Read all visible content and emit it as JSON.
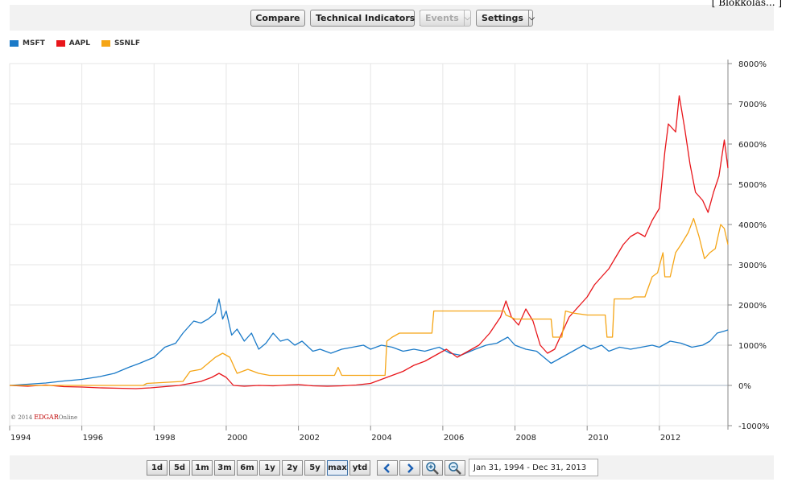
{
  "corner_text": "[ Blokkolás... ]",
  "toolbar": {
    "compare": "Compare",
    "technical_indicators": "Technical Indicators",
    "events": "Events",
    "settings": "Settings"
  },
  "legend": [
    {
      "name": "MSFT",
      "color": "#1a7ac8"
    },
    {
      "name": "AAPL",
      "color": "#e8161b"
    },
    {
      "name": "SSNLF",
      "color": "#f5a516"
    }
  ],
  "credit": {
    "prefix": "© 2014",
    "brand": "EDGAR",
    "suffix": "Online"
  },
  "range_buttons": [
    "1d",
    "5d",
    "1m",
    "3m",
    "6m",
    "1y",
    "2y",
    "5y",
    "max",
    "ytd"
  ],
  "active_range": "max",
  "date_range": "Jan 31, 1994 - Dec 31, 2013",
  "colors": {
    "grid": "#e6e6e6",
    "zero": "#a7b4c4",
    "axis": "#888888"
  },
  "chart_data": {
    "type": "line",
    "x_tick_labels": [
      "1994",
      "1996",
      "1998",
      "2000",
      "2002",
      "2004",
      "2006",
      "2008",
      "2010",
      "2012"
    ],
    "y_tick_labels": [
      "8000%",
      "7000%",
      "6000%",
      "5000%",
      "4000%",
      "3000%",
      "2000%",
      "1000%",
      "0%",
      "-1000%"
    ],
    "ylim": [
      -1000,
      8000
    ],
    "xlim": [
      1994.0,
      2013.9
    ],
    "grid": true,
    "legend_position": "top-left",
    "series": [
      {
        "name": "MSFT",
        "color": "#1a7ac8",
        "points": [
          [
            1994.0,
            0
          ],
          [
            1994.5,
            30
          ],
          [
            1995.0,
            60
          ],
          [
            1995.5,
            110
          ],
          [
            1996.0,
            150
          ],
          [
            1996.5,
            220
          ],
          [
            1996.9,
            300
          ],
          [
            1997.3,
            450
          ],
          [
            1997.6,
            550
          ],
          [
            1998.0,
            700
          ],
          [
            1998.3,
            950
          ],
          [
            1998.6,
            1050
          ],
          [
            1998.8,
            1300
          ],
          [
            1998.95,
            1450
          ],
          [
            1999.1,
            1600
          ],
          [
            1999.3,
            1550
          ],
          [
            1999.5,
            1650
          ],
          [
            1999.7,
            1800
          ],
          [
            1999.8,
            2150
          ],
          [
            1999.9,
            1650
          ],
          [
            2000.0,
            1850
          ],
          [
            2000.15,
            1250
          ],
          [
            2000.3,
            1400
          ],
          [
            2000.5,
            1100
          ],
          [
            2000.7,
            1300
          ],
          [
            2000.9,
            900
          ],
          [
            2001.1,
            1050
          ],
          [
            2001.3,
            1300
          ],
          [
            2001.5,
            1100
          ],
          [
            2001.7,
            1150
          ],
          [
            2001.9,
            1000
          ],
          [
            2002.1,
            1100
          ],
          [
            2002.4,
            850
          ],
          [
            2002.6,
            900
          ],
          [
            2002.9,
            800
          ],
          [
            2003.2,
            900
          ],
          [
            2003.5,
            950
          ],
          [
            2003.8,
            1000
          ],
          [
            2004.0,
            900
          ],
          [
            2004.3,
            1000
          ],
          [
            2004.6,
            950
          ],
          [
            2004.9,
            850
          ],
          [
            2005.2,
            900
          ],
          [
            2005.5,
            850
          ],
          [
            2005.9,
            950
          ],
          [
            2006.2,
            800
          ],
          [
            2006.5,
            750
          ],
          [
            2006.9,
            900
          ],
          [
            2007.2,
            1000
          ],
          [
            2007.5,
            1050
          ],
          [
            2007.8,
            1200
          ],
          [
            2008.0,
            1000
          ],
          [
            2008.3,
            900
          ],
          [
            2008.6,
            850
          ],
          [
            2008.8,
            700
          ],
          [
            2009.0,
            550
          ],
          [
            2009.3,
            700
          ],
          [
            2009.6,
            850
          ],
          [
            2009.9,
            1000
          ],
          [
            2010.1,
            900
          ],
          [
            2010.4,
            1000
          ],
          [
            2010.6,
            850
          ],
          [
            2010.9,
            950
          ],
          [
            2011.2,
            900
          ],
          [
            2011.5,
            950
          ],
          [
            2011.8,
            1000
          ],
          [
            2012.0,
            950
          ],
          [
            2012.3,
            1100
          ],
          [
            2012.6,
            1050
          ],
          [
            2012.9,
            950
          ],
          [
            2013.2,
            1000
          ],
          [
            2013.4,
            1100
          ],
          [
            2013.6,
            1300
          ],
          [
            2013.8,
            1350
          ],
          [
            2013.9,
            1380
          ]
        ]
      },
      {
        "name": "AAPL",
        "color": "#e8161b",
        "points": [
          [
            1994.0,
            0
          ],
          [
            1994.5,
            -20
          ],
          [
            1995.0,
            10
          ],
          [
            1995.5,
            -30
          ],
          [
            1996.0,
            -40
          ],
          [
            1996.5,
            -60
          ],
          [
            1997.0,
            -70
          ],
          [
            1997.5,
            -80
          ],
          [
            1997.9,
            -60
          ],
          [
            1998.3,
            -30
          ],
          [
            1998.7,
            0
          ],
          [
            1999.0,
            50
          ],
          [
            1999.3,
            100
          ],
          [
            1999.6,
            200
          ],
          [
            1999.8,
            300
          ],
          [
            2000.0,
            200
          ],
          [
            2000.2,
            0
          ],
          [
            2000.5,
            -20
          ],
          [
            2000.9,
            0
          ],
          [
            2001.3,
            -10
          ],
          [
            2001.7,
            10
          ],
          [
            2002.0,
            20
          ],
          [
            2002.4,
            -10
          ],
          [
            2002.8,
            -20
          ],
          [
            2003.2,
            -10
          ],
          [
            2003.6,
            10
          ],
          [
            2004.0,
            50
          ],
          [
            2004.3,
            150
          ],
          [
            2004.6,
            250
          ],
          [
            2004.9,
            350
          ],
          [
            2005.2,
            500
          ],
          [
            2005.5,
            600
          ],
          [
            2005.8,
            750
          ],
          [
            2006.1,
            900
          ],
          [
            2006.4,
            700
          ],
          [
            2006.7,
            850
          ],
          [
            2007.0,
            1000
          ],
          [
            2007.3,
            1300
          ],
          [
            2007.6,
            1700
          ],
          [
            2007.75,
            2100
          ],
          [
            2007.9,
            1700
          ],
          [
            2008.1,
            1500
          ],
          [
            2008.3,
            1900
          ],
          [
            2008.5,
            1600
          ],
          [
            2008.7,
            1000
          ],
          [
            2008.9,
            800
          ],
          [
            2009.1,
            900
          ],
          [
            2009.3,
            1300
          ],
          [
            2009.5,
            1700
          ],
          [
            2009.8,
            2000
          ],
          [
            2010.0,
            2200
          ],
          [
            2010.2,
            2500
          ],
          [
            2010.4,
            2700
          ],
          [
            2010.6,
            2900
          ],
          [
            2010.8,
            3200
          ],
          [
            2011.0,
            3500
          ],
          [
            2011.2,
            3700
          ],
          [
            2011.4,
            3800
          ],
          [
            2011.6,
            3700
          ],
          [
            2011.8,
            4100
          ],
          [
            2012.0,
            4400
          ],
          [
            2012.15,
            5800
          ],
          [
            2012.25,
            6500
          ],
          [
            2012.45,
            6300
          ],
          [
            2012.55,
            7200
          ],
          [
            2012.7,
            6400
          ],
          [
            2012.85,
            5500
          ],
          [
            2013.0,
            4800
          ],
          [
            2013.2,
            4600
          ],
          [
            2013.35,
            4300
          ],
          [
            2013.5,
            4800
          ],
          [
            2013.65,
            5200
          ],
          [
            2013.8,
            6100
          ],
          [
            2013.9,
            5400
          ]
        ]
      },
      {
        "name": "SSNLF",
        "color": "#f5a516",
        "points": [
          [
            1994.0,
            0
          ],
          [
            1997.7,
            0
          ],
          [
            1997.8,
            50
          ],
          [
            1998.8,
            100
          ],
          [
            1999.0,
            350
          ],
          [
            1999.3,
            400
          ],
          [
            1999.5,
            550
          ],
          [
            1999.7,
            700
          ],
          [
            1999.9,
            800
          ],
          [
            2000.1,
            700
          ],
          [
            2000.3,
            300
          ],
          [
            2000.6,
            400
          ],
          [
            2000.9,
            300
          ],
          [
            2001.2,
            250
          ],
          [
            2002.0,
            250
          ],
          [
            2003.0,
            250
          ],
          [
            2003.1,
            450
          ],
          [
            2003.2,
            250
          ],
          [
            2004.4,
            250
          ],
          [
            2004.45,
            1100
          ],
          [
            2004.6,
            1200
          ],
          [
            2004.8,
            1300
          ],
          [
            2005.0,
            1300
          ],
          [
            2005.7,
            1300
          ],
          [
            2005.75,
            1850
          ],
          [
            2007.7,
            1850
          ],
          [
            2007.75,
            1750
          ],
          [
            2008.0,
            1650
          ],
          [
            2009.0,
            1650
          ],
          [
            2009.05,
            1200
          ],
          [
            2009.3,
            1200
          ],
          [
            2009.4,
            1850
          ],
          [
            2009.6,
            1800
          ],
          [
            2010.0,
            1750
          ],
          [
            2010.5,
            1750
          ],
          [
            2010.55,
            1200
          ],
          [
            2010.7,
            1200
          ],
          [
            2010.75,
            2150
          ],
          [
            2011.2,
            2150
          ],
          [
            2011.3,
            2200
          ],
          [
            2011.6,
            2200
          ],
          [
            2011.8,
            2700
          ],
          [
            2011.95,
            2800
          ],
          [
            2012.1,
            3300
          ],
          [
            2012.15,
            2700
          ],
          [
            2012.3,
            2700
          ],
          [
            2012.45,
            3300
          ],
          [
            2012.6,
            3500
          ],
          [
            2012.8,
            3800
          ],
          [
            2012.95,
            4150
          ],
          [
            2013.1,
            3700
          ],
          [
            2013.25,
            3150
          ],
          [
            2013.4,
            3300
          ],
          [
            2013.55,
            3400
          ],
          [
            2013.7,
            4000
          ],
          [
            2013.8,
            3900
          ],
          [
            2013.9,
            3500
          ]
        ]
      }
    ]
  }
}
